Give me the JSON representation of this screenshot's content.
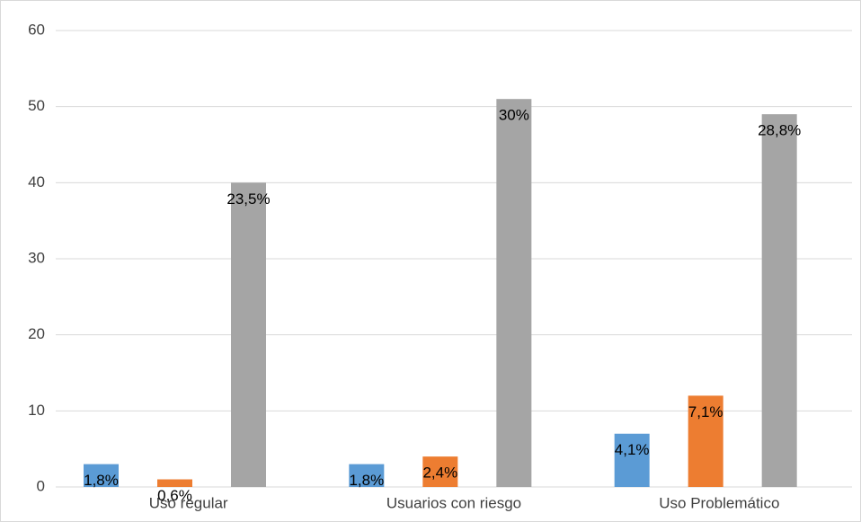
{
  "chart_data": {
    "type": "bar",
    "categories": [
      "Uso regular",
      "Usuarios con riesgo",
      "Uso Problemático"
    ],
    "series": [
      {
        "color": "#5b9bd5",
        "values": [
          3,
          3,
          7
        ],
        "labels": [
          "1,8%",
          "1,8%",
          "4,1%"
        ]
      },
      {
        "color": "#ed7d31",
        "values": [
          1,
          4,
          12
        ],
        "labels": [
          "0,6%",
          "2,4%",
          "7,1%"
        ]
      },
      {
        "color": "#a5a5a5",
        "values": [
          40,
          51,
          49
        ],
        "labels": [
          "23,5%",
          "30%",
          "28,8%"
        ]
      }
    ],
    "ylim": [
      0,
      60
    ],
    "yticks": [
      0,
      10,
      20,
      30,
      40,
      50,
      60
    ],
    "grid": true
  }
}
